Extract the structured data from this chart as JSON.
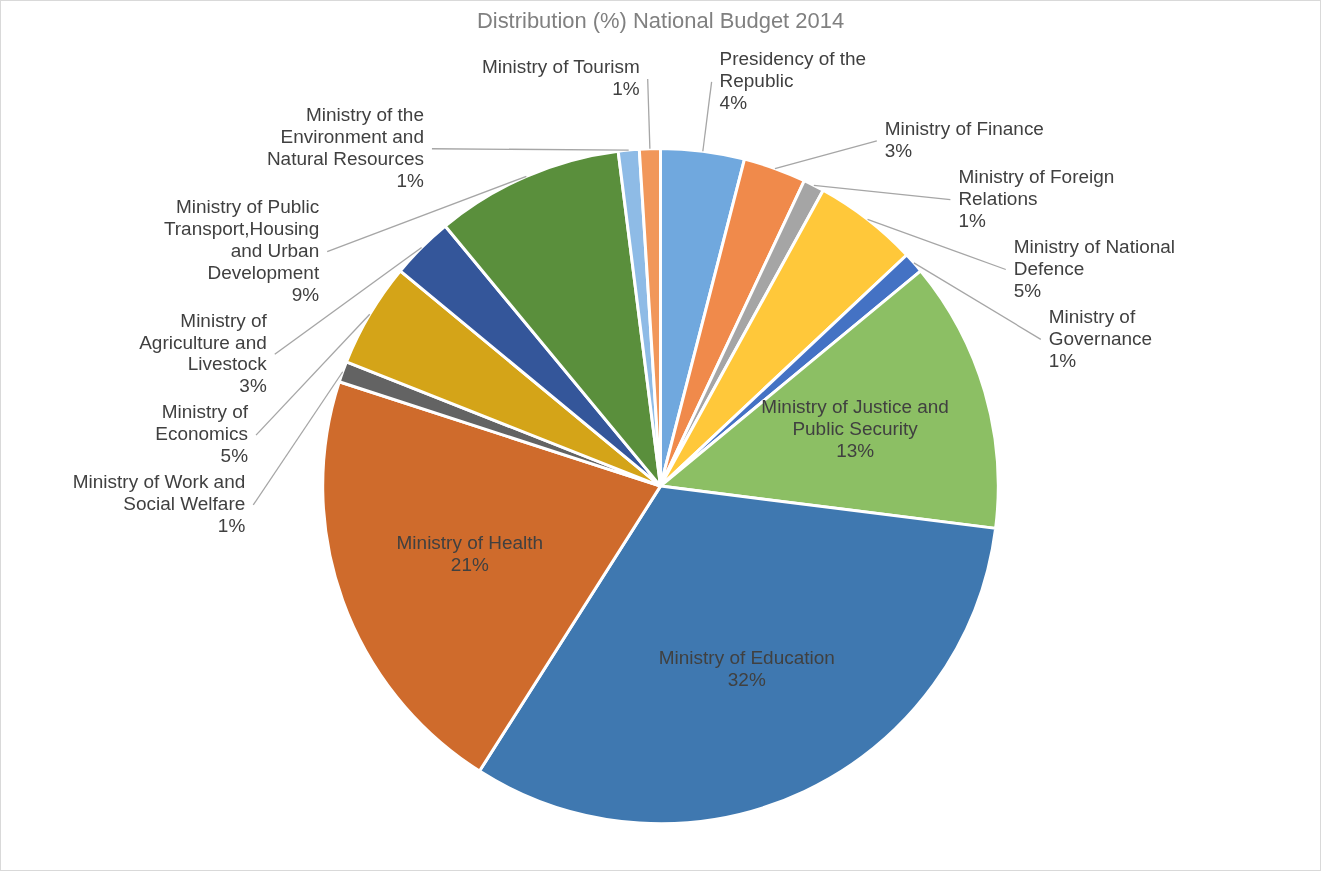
{
  "chart_data": {
    "type": "pie",
    "title": "Distribution (%) National Budget 2014",
    "categories": [
      "Presidency of the Republic",
      "Ministry of Finance",
      "Ministry of Foreign Relations",
      "Ministry of National Defence",
      "Ministry of Governance",
      "Ministry of Justice and Public Security",
      "Ministry of Education",
      "Ministry of Health",
      "Ministry of Work and Social Welfare",
      "Ministry of Economics",
      "Ministry of Agriculture and Livestock",
      "Ministry of Public Transport,Housing and Urban Development",
      "Ministry of the Environment and Natural Resources",
      "Ministry of Tourism"
    ],
    "values": [
      4,
      3,
      1,
      5,
      1,
      13,
      32,
      21,
      1,
      5,
      3,
      9,
      1,
      1
    ],
    "value_labels": [
      "4%",
      "3%",
      "1%",
      "5%",
      "1%",
      "13%",
      "32%",
      "21%",
      "1%",
      "5%",
      "3%",
      "9%",
      "1%",
      "1%"
    ],
    "colors": [
      "#70a8de",
      "#f08a4b",
      "#a5a5a5",
      "#ffc83a",
      "#4472c4",
      "#8cbf64",
      "#3f78b0",
      "#cf6b2c",
      "#636363",
      "#d4a418",
      "#34569a",
      "#5a8f3c",
      "#8ebbe6",
      "#f1975a"
    ],
    "legend": false
  }
}
